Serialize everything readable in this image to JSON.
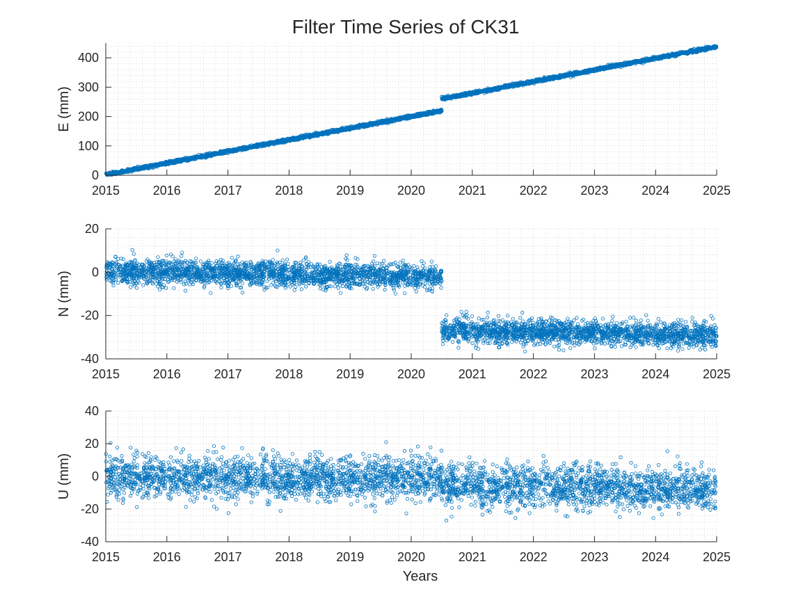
{
  "chart_data": [
    {
      "type": "scatter",
      "title": "Filter Time Series of CK31",
      "xlabel": "",
      "ylabel": "E (mm)",
      "xlim": [
        2015,
        2025
      ],
      "ylim": [
        0,
        450
      ],
      "xticks": [
        "2015",
        "2016",
        "2017",
        "2018",
        "2019",
        "2020",
        "2021",
        "2022",
        "2023",
        "2024",
        "2025"
      ],
      "yticks": [
        "0",
        "100",
        "200",
        "300",
        "400"
      ],
      "ytick_values": [
        0,
        100,
        200,
        300,
        400
      ],
      "grid": true,
      "marker": "open-circle",
      "color": "#0072BD",
      "model": {
        "segments": [
          {
            "x_start": 2015.0,
            "x_end": 2020.5,
            "y_start": 2,
            "y_end": 220
          },
          {
            "x_start": 2020.5,
            "x_end": 2025.0,
            "y_start": 260,
            "y_end": 438
          }
        ],
        "noise_sd": 2.5
      }
    },
    {
      "type": "scatter",
      "title": "",
      "xlabel": "",
      "ylabel": "N (mm)",
      "xlim": [
        2015,
        2025
      ],
      "ylim": [
        -40,
        20
      ],
      "xticks": [
        "2015",
        "2016",
        "2017",
        "2018",
        "2019",
        "2020",
        "2021",
        "2022",
        "2023",
        "2024",
        "2025"
      ],
      "yticks": [
        "-40",
        "-20",
        "0",
        "20"
      ],
      "ytick_values": [
        -40,
        -20,
        0,
        20
      ],
      "grid": true,
      "marker": "open-circle",
      "color": "#0072BD",
      "model": {
        "segments": [
          {
            "x_start": 2015.0,
            "x_end": 2020.5,
            "y_start": 0.5,
            "y_end": -2
          },
          {
            "x_start": 2020.5,
            "x_end": 2025.0,
            "y_start": -27,
            "y_end": -29
          }
        ],
        "noise_sd": 2.8
      }
    },
    {
      "type": "scatter",
      "title": "",
      "xlabel": "Years",
      "ylabel": "U (mm)",
      "xlim": [
        2015,
        2025
      ],
      "ylim": [
        -40,
        40
      ],
      "xticks": [
        "2015",
        "2016",
        "2017",
        "2018",
        "2019",
        "2020",
        "2021",
        "2022",
        "2023",
        "2024",
        "2025"
      ],
      "yticks": [
        "-40",
        "-20",
        "0",
        "20",
        "40"
      ],
      "ytick_values": [
        -40,
        -20,
        0,
        20,
        40
      ],
      "grid": true,
      "marker": "open-circle",
      "color": "#0072BD",
      "model": {
        "segments": [
          {
            "x_start": 2015.0,
            "x_end": 2020.5,
            "y_start": 0,
            "y_end": -1
          },
          {
            "x_start": 2020.5,
            "x_end": 2025.0,
            "y_start": -5,
            "y_end": -8
          }
        ],
        "noise_sd": 6.5
      }
    }
  ]
}
